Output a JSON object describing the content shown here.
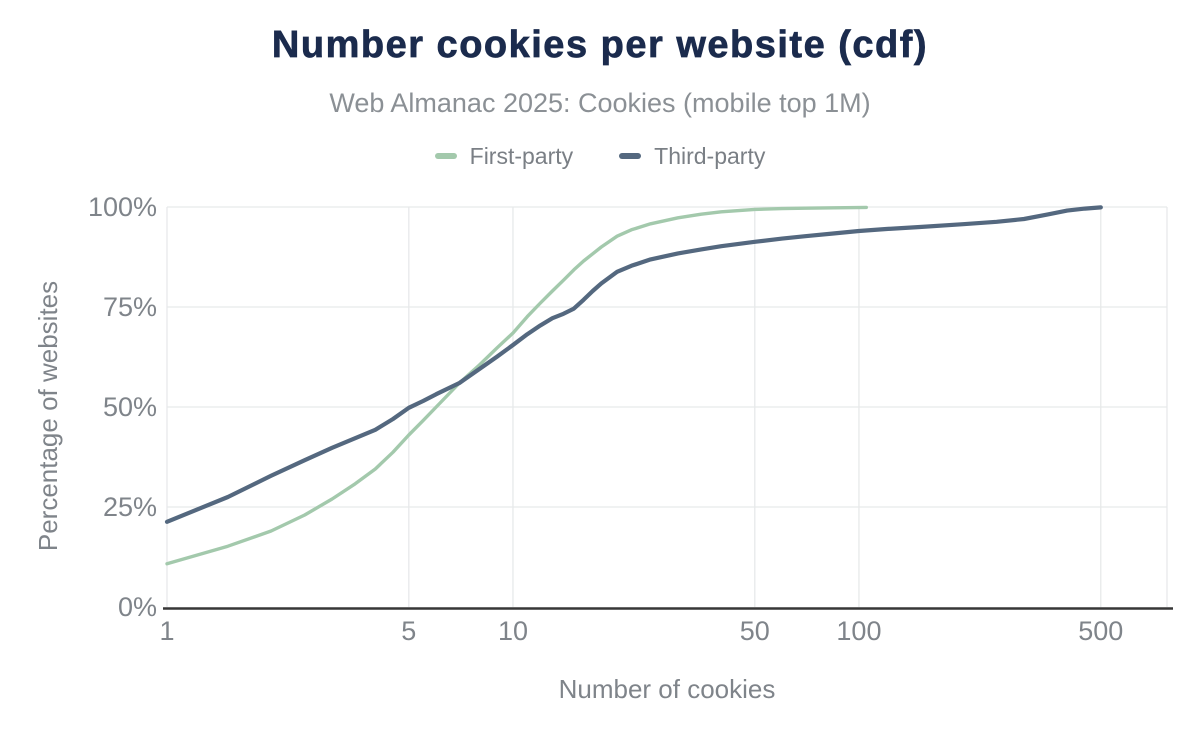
{
  "chart_data": {
    "type": "line",
    "title": "Number cookies per website (cdf)",
    "subtitle": "Web Almanac 2025: Cookies (mobile top 1M)",
    "xlabel": "Number of cookies",
    "ylabel": "Percentage of websites",
    "x_scale": "log",
    "xlim": [
      1,
      777
    ],
    "ylim": [
      0,
      100
    ],
    "grid": "on",
    "legend_position": "top-center",
    "x_ticks": [
      {
        "value": 1,
        "label": "1"
      },
      {
        "value": 5,
        "label": "5"
      },
      {
        "value": 10,
        "label": "10"
      },
      {
        "value": 50,
        "label": "50"
      },
      {
        "value": 100,
        "label": "100"
      },
      {
        "value": 500,
        "label": "500"
      }
    ],
    "y_ticks": [
      {
        "value": 0,
        "label": "0%"
      },
      {
        "value": 25,
        "label": "25%"
      },
      {
        "value": 50,
        "label": "50%"
      },
      {
        "value": 75,
        "label": "75%"
      },
      {
        "value": 100,
        "label": "100%"
      }
    ],
    "series": [
      {
        "name": "First-party",
        "color": "#a3c9ac",
        "stroke_width": 3.4,
        "points": [
          [
            1,
            10.8
          ],
          [
            1.5,
            15.2
          ],
          [
            2,
            19
          ],
          [
            2.5,
            23
          ],
          [
            3,
            27
          ],
          [
            3.5,
            30.8
          ],
          [
            4,
            34.5
          ],
          [
            4.5,
            38.7
          ],
          [
            5,
            43
          ],
          [
            5.5,
            46.6
          ],
          [
            6,
            50
          ],
          [
            7,
            56
          ],
          [
            8,
            60.5
          ],
          [
            9,
            64.8
          ],
          [
            10,
            68.5
          ],
          [
            11,
            72.6
          ],
          [
            12,
            76
          ],
          [
            13,
            79
          ],
          [
            14,
            81.7
          ],
          [
            15,
            84.3
          ],
          [
            16,
            86.5
          ],
          [
            17,
            88.3
          ],
          [
            18,
            90
          ],
          [
            20,
            92.7
          ],
          [
            22,
            94.3
          ],
          [
            25,
            95.8
          ],
          [
            30,
            97.3
          ],
          [
            35,
            98.2
          ],
          [
            40,
            98.8
          ],
          [
            50,
            99.4
          ],
          [
            60,
            99.6
          ],
          [
            70,
            99.7
          ],
          [
            85,
            99.8
          ],
          [
            105,
            99.9
          ]
        ]
      },
      {
        "name": "Third-party",
        "color": "#54687f",
        "stroke_width": 4.2,
        "points": [
          [
            1,
            21.3
          ],
          [
            1.5,
            27.5
          ],
          [
            2,
            32.8
          ],
          [
            2.5,
            36.7
          ],
          [
            3,
            39.8
          ],
          [
            3.5,
            42.2
          ],
          [
            4,
            44.3
          ],
          [
            4.5,
            47
          ],
          [
            5,
            49.8
          ],
          [
            5.5,
            51.5
          ],
          [
            6,
            53.2
          ],
          [
            7,
            56
          ],
          [
            8,
            59.5
          ],
          [
            9,
            62.6
          ],
          [
            10,
            65.5
          ],
          [
            11,
            68.2
          ],
          [
            12,
            70.4
          ],
          [
            13,
            72.2
          ],
          [
            14,
            73.3
          ],
          [
            15,
            74.6
          ],
          [
            16,
            76.8
          ],
          [
            17,
            79
          ],
          [
            18,
            80.9
          ],
          [
            20,
            83.8
          ],
          [
            22,
            85.3
          ],
          [
            25,
            86.9
          ],
          [
            30,
            88.4
          ],
          [
            35,
            89.4
          ],
          [
            40,
            90.2
          ],
          [
            50,
            91.3
          ],
          [
            60,
            92.1
          ],
          [
            70,
            92.7
          ],
          [
            85,
            93.4
          ],
          [
            100,
            94
          ],
          [
            120,
            94.5
          ],
          [
            150,
            95
          ],
          [
            200,
            95.7
          ],
          [
            250,
            96.3
          ],
          [
            300,
            97
          ],
          [
            350,
            98.1
          ],
          [
            400,
            99.1
          ],
          [
            450,
            99.6
          ],
          [
            500,
            99.9
          ]
        ]
      }
    ],
    "colors": {
      "title": "#1b2b4d",
      "subtitle": "#8b9095",
      "labels": "#7f848a",
      "grid": "#e7e9ea",
      "axis_line": "#373737",
      "background": "#ffffff"
    }
  }
}
